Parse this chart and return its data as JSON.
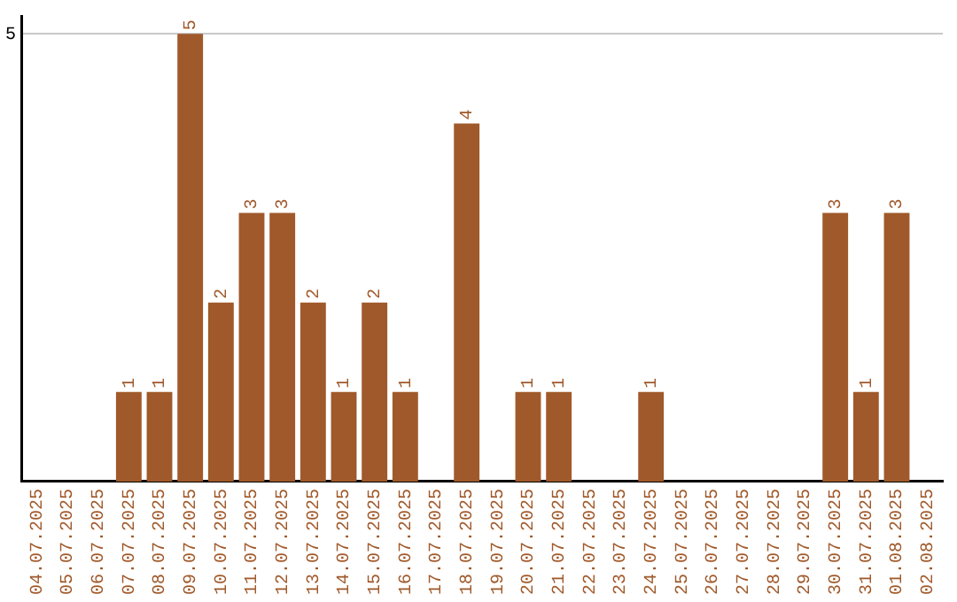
{
  "chart_data": {
    "type": "bar",
    "categories": [
      "04.07.2025",
      "05.07.2025",
      "06.07.2025",
      "07.07.2025",
      "08.07.2025",
      "09.07.2025",
      "10.07.2025",
      "11.07.2025",
      "12.07.2025",
      "13.07.2025",
      "14.07.2025",
      "15.07.2025",
      "16.07.2025",
      "17.07.2025",
      "18.07.2025",
      "19.07.2025",
      "20.07.2025",
      "21.07.2025",
      "22.07.2025",
      "23.07.2025",
      "24.07.2025",
      "25.07.2025",
      "26.07.2025",
      "27.07.2025",
      "28.07.2025",
      "29.07.2025",
      "30.07.2025",
      "31.07.2025",
      "01.08.2025",
      "02.08.2025"
    ],
    "values": [
      0,
      0,
      0,
      1,
      1,
      5,
      2,
      3,
      3,
      2,
      1,
      2,
      1,
      0,
      4,
      0,
      1,
      1,
      0,
      0,
      1,
      0,
      0,
      0,
      0,
      0,
      3,
      1,
      3,
      0
    ],
    "value_labels": [
      null,
      null,
      null,
      "1",
      "1",
      "5",
      "2",
      "3",
      "3",
      "2",
      "1",
      "2",
      "1",
      null,
      "4",
      null,
      "1",
      "1",
      null,
      null,
      "1",
      null,
      null,
      null,
      null,
      null,
      "3",
      "1",
      "3",
      null
    ],
    "color": "#a0592a",
    "ylim": [
      0,
      5.2
    ],
    "yticks": [
      5
    ],
    "grid": "y",
    "legend": false
  }
}
